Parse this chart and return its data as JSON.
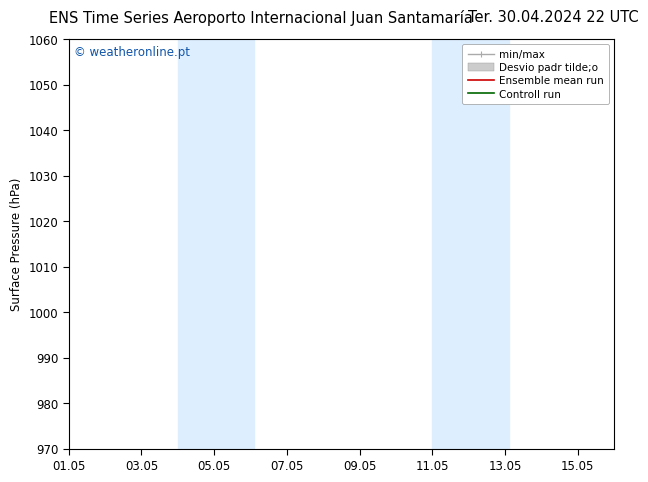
{
  "title_left": "ENS Time Series Aeroporto Internacional Juan Santamaría",
  "title_right": "Ter. 30.04.2024 22 UTC",
  "ylabel": "Surface Pressure (hPa)",
  "ylim": [
    970,
    1060
  ],
  "yticks": [
    970,
    980,
    990,
    1000,
    1010,
    1020,
    1030,
    1040,
    1050,
    1060
  ],
  "xlim": [
    0,
    15
  ],
  "xtick_labels": [
    "01.05",
    "03.05",
    "05.05",
    "07.05",
    "09.05",
    "11.05",
    "13.05",
    "15.05"
  ],
  "xtick_positions": [
    0,
    2,
    4,
    6,
    8,
    10,
    12,
    14
  ],
  "shaded_bands": [
    {
      "start": 3.0,
      "end": 5.1,
      "color": "#ddeeff"
    },
    {
      "start": 10.0,
      "end": 12.1,
      "color": "#ddeeff"
    }
  ],
  "watermark_text": "© weatheronline.pt",
  "watermark_color": "#1155aa",
  "legend_entries": [
    {
      "label": "min/max",
      "color": "#aaaaaa",
      "lw": 1.0
    },
    {
      "label": "Desvio padr tilde;o",
      "color": "#cccccc",
      "lw": 6
    },
    {
      "label": "Ensemble mean run",
      "color": "#cc0000",
      "lw": 1.2
    },
    {
      "label": "Controll run",
      "color": "#006600",
      "lw": 1.2
    }
  ],
  "bg_color": "#ffffff",
  "plot_bg_color": "#ffffff",
  "title_fontsize": 10.5,
  "axis_label_fontsize": 8.5,
  "tick_fontsize": 8.5,
  "watermark_fontsize": 8.5,
  "legend_fontsize": 7.5
}
